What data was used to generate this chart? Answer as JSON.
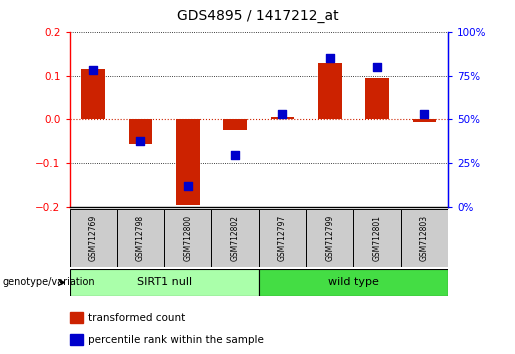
{
  "title": "GDS4895 / 1417212_at",
  "samples": [
    "GSM712769",
    "GSM712798",
    "GSM712800",
    "GSM712802",
    "GSM712797",
    "GSM712799",
    "GSM712801",
    "GSM712803"
  ],
  "transformed_count": [
    0.115,
    -0.055,
    -0.195,
    -0.025,
    0.005,
    0.13,
    0.095,
    -0.005
  ],
  "percentile_rank": [
    78,
    38,
    12,
    30,
    53,
    85,
    80,
    53
  ],
  "groups": [
    {
      "label": "SIRT1 null",
      "start": 0,
      "end": 4,
      "color": "#aaffaa"
    },
    {
      "label": "wild type",
      "start": 4,
      "end": 8,
      "color": "#44dd44"
    }
  ],
  "ylim_left": [
    -0.2,
    0.2
  ],
  "ylim_right": [
    0,
    100
  ],
  "yticks_left": [
    -0.2,
    -0.1,
    0.0,
    0.1,
    0.2
  ],
  "yticks_right": [
    0,
    25,
    50,
    75,
    100
  ],
  "bar_color": "#cc2200",
  "dot_color": "#0000cc",
  "zero_line_color": "#cc2200",
  "grid_color": "#000000",
  "legend_bar_label": "transformed count",
  "legend_dot_label": "percentile rank within the sample",
  "xlabel_group": "genotype/variation",
  "background_color": "#ffffff"
}
